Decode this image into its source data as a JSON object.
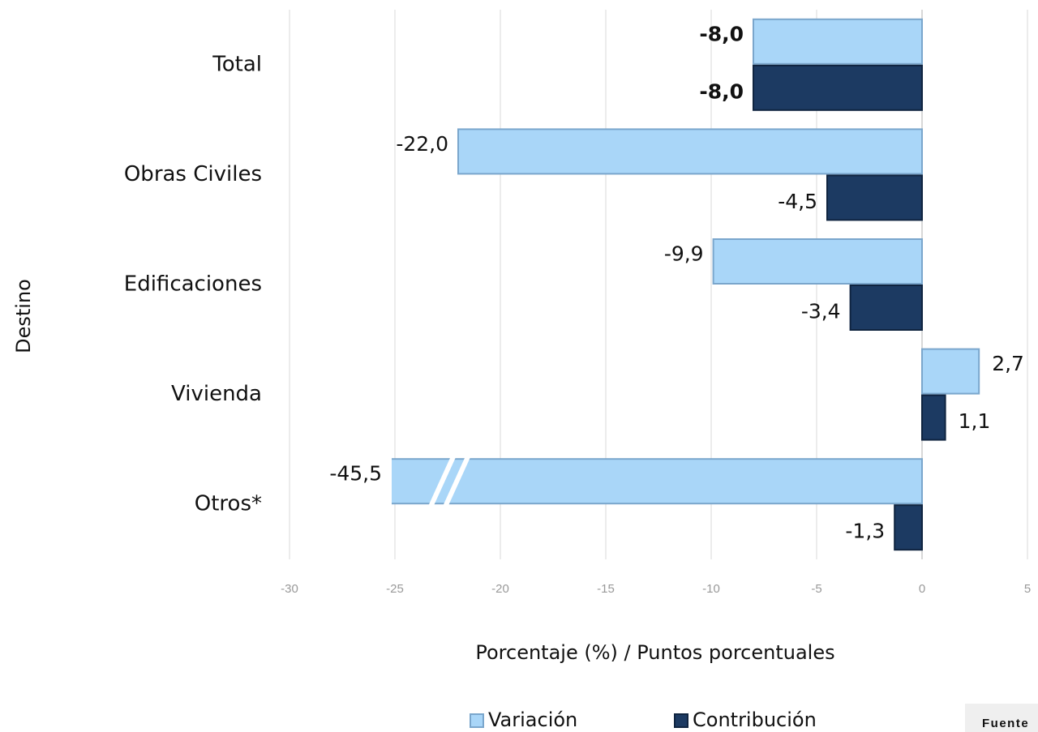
{
  "chart_data": {
    "type": "hbar",
    "categories": [
      "Total",
      "Obras Civiles",
      "Edificaciones",
      "Vivienda",
      "Otros*"
    ],
    "series": [
      {
        "name": "Variación",
        "color": "#a9d6f8",
        "values": [
          -8.0,
          -22.0,
          -9.9,
          2.7,
          -45.5
        ],
        "value_labels": [
          "-8,0",
          "-22,0",
          "-9,9",
          "2,7",
          "-45,5"
        ]
      },
      {
        "name": "Contribución",
        "color": "#1c3a62",
        "values": [
          -8.0,
          -4.5,
          -3.4,
          1.1,
          -1.3
        ],
        "value_labels": [
          "-8,0",
          "-4,5",
          "-3,4",
          "1,1",
          "-1,3"
        ]
      }
    ],
    "xlim": [
      -30,
      5
    ],
    "xticks": [
      -30,
      -25,
      -20,
      -15,
      -10,
      -5,
      0,
      5
    ],
    "grid": true,
    "xlabel": "Porcentaje (%) / Puntos porcentuales",
    "ylabel": "Destino",
    "legend": "bottom",
    "source": "Fuente"
  }
}
